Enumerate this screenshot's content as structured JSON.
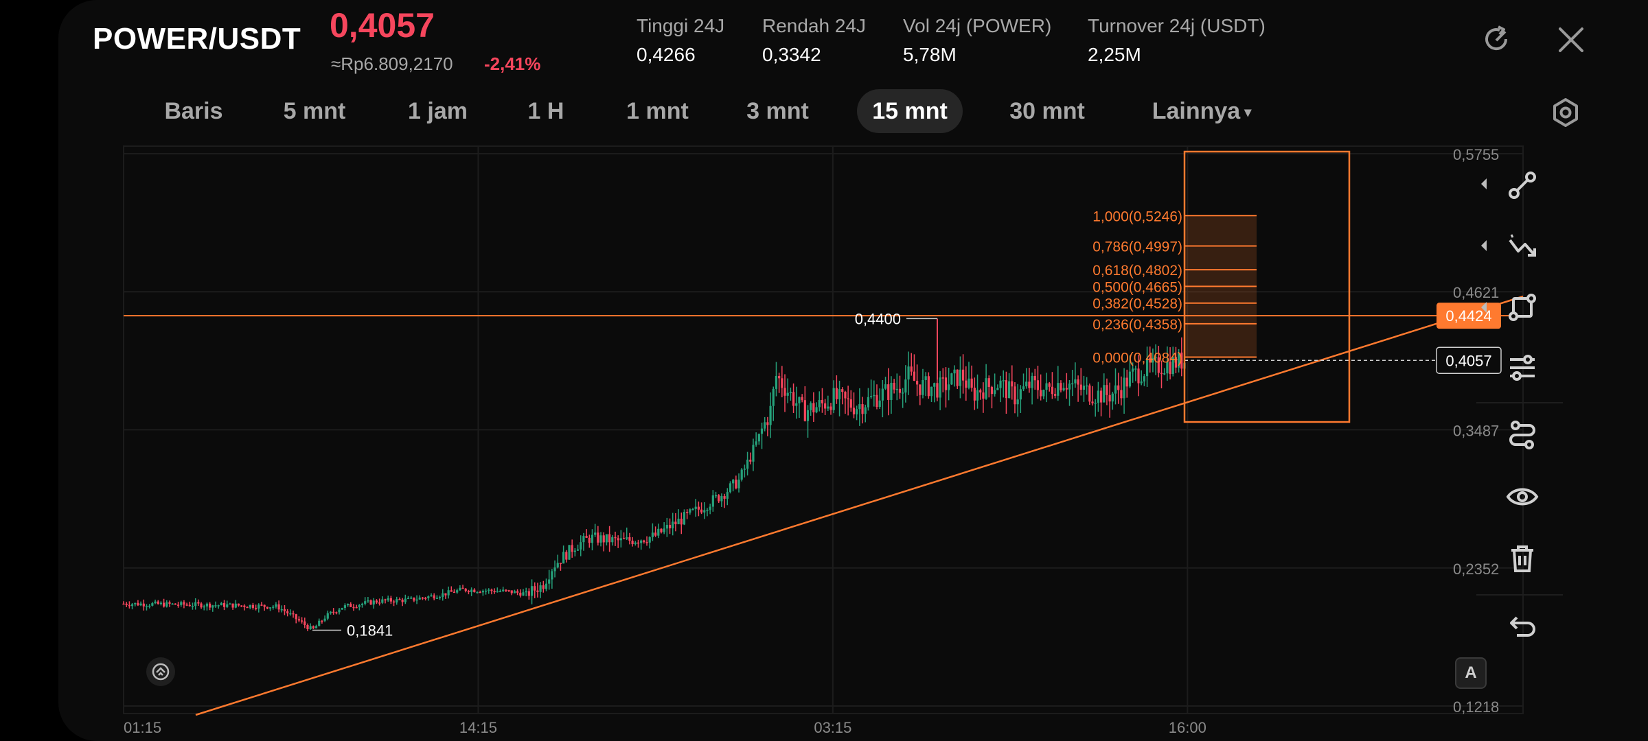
{
  "header": {
    "pair": "POWER/USDT",
    "last_price": "0,4057",
    "fiat_value": "≈Rp6.809,2170",
    "change_pct": "-2,41%",
    "stats": [
      {
        "label": "Tinggi 24J",
        "value": "0,4266"
      },
      {
        "label": "Rendah 24J",
        "value": "0,3342"
      },
      {
        "label": "Vol 24j (POWER)",
        "value": "5,78M"
      },
      {
        "label": "Turnover 24j (USDT)",
        "value": "2,25M"
      }
    ],
    "icons": {
      "rotate": "rotate-screen-icon",
      "close": "close-icon"
    }
  },
  "tabs": [
    "Baris",
    "5 mnt",
    "1 jam",
    "1 H",
    "1 mnt",
    "3 mnt",
    "15 mnt",
    "30 mnt",
    "Lainnya"
  ],
  "active_tab": "15 mnt",
  "settings_icon": "hexagon-settings-icon",
  "sidebar_icons": [
    "trend-line-tool-icon",
    "zigzag-tool-icon",
    "shape-tool-icon",
    "fibonacci-tool-icon",
    "pattern-tool-icon",
    "visibility-icon",
    "delete-icon",
    "undo-icon"
  ],
  "colors": {
    "up": "#26a17b",
    "down": "#f6465d",
    "drawing": "#ff7a2f",
    "background": "#0b0b0b"
  },
  "chart_data": {
    "type": "candlestick",
    "y_axis_labels": [
      "0,5755",
      "0,4621",
      "0,3487",
      "0,2352",
      "0,1218"
    ],
    "ylim": [
      0.1218,
      0.5755
    ],
    "x_axis_labels": [
      "01:15",
      "14:15",
      "03:15",
      "16:00"
    ],
    "price_path": [
      [
        0,
        0.2059
      ],
      [
        0.05,
        0.2052
      ],
      [
        0.09,
        0.2047
      ],
      [
        0.12,
        0.2042
      ],
      [
        0.145,
        0.2035
      ],
      [
        0.155,
        0.198
      ],
      [
        0.17,
        0.189
      ],
      [
        0.178,
        0.1841
      ],
      [
        0.19,
        0.195
      ],
      [
        0.205,
        0.203
      ],
      [
        0.24,
        0.208
      ],
      [
        0.27,
        0.209
      ],
      [
        0.3,
        0.2135
      ],
      [
        0.32,
        0.2175
      ],
      [
        0.36,
        0.216
      ],
      [
        0.38,
        0.214
      ],
      [
        0.395,
        0.221
      ],
      [
        0.405,
        0.237
      ],
      [
        0.415,
        0.245
      ],
      [
        0.425,
        0.253
      ],
      [
        0.44,
        0.26
      ],
      [
        0.47,
        0.257
      ],
      [
        0.5,
        0.261
      ],
      [
        0.52,
        0.272
      ],
      [
        0.545,
        0.285
      ],
      [
        0.565,
        0.296
      ],
      [
        0.58,
        0.307
      ],
      [
        0.59,
        0.325
      ],
      [
        0.6,
        0.345
      ],
      [
        0.61,
        0.365
      ],
      [
        0.615,
        0.393
      ],
      [
        0.625,
        0.382
      ],
      [
        0.64,
        0.364
      ],
      [
        0.655,
        0.368
      ],
      [
        0.67,
        0.375
      ],
      [
        0.69,
        0.368
      ],
      [
        0.71,
        0.376
      ],
      [
        0.73,
        0.384
      ],
      [
        0.74,
        0.393
      ],
      [
        0.75,
        0.385
      ],
      [
        0.77,
        0.383
      ],
      [
        0.79,
        0.394
      ],
      [
        0.8,
        0.378
      ],
      [
        0.81,
        0.383
      ],
      [
        0.825,
        0.387
      ],
      [
        0.84,
        0.376
      ],
      [
        0.855,
        0.386
      ],
      [
        0.87,
        0.381
      ],
      [
        0.885,
        0.389
      ],
      [
        0.9,
        0.383
      ],
      [
        0.915,
        0.378
      ],
      [
        0.93,
        0.3775
      ],
      [
        0.94,
        0.383
      ],
      [
        0.95,
        0.393
      ],
      [
        0.965,
        0.399
      ],
      [
        1,
        0.4057
      ]
    ],
    "extremes": {
      "high_label": "0,4400",
      "high": 0.44,
      "low_label": "0,1841",
      "low": 0.1841
    },
    "horizontal_line": {
      "value": 0.4424,
      "label": "0,4424"
    },
    "current_price": {
      "value": 0.4057,
      "label": "0,4057"
    },
    "fibonacci": [
      {
        "ratio": "1,000",
        "price": "0,5246",
        "value": 0.5246
      },
      {
        "ratio": "0,786",
        "price": "0,4997",
        "value": 0.4997
      },
      {
        "ratio": "0,618",
        "price": "0,4802",
        "value": 0.4802
      },
      {
        "ratio": "0,500",
        "price": "0,4665",
        "value": 0.4665
      },
      {
        "ratio": "0,382",
        "price": "0,4528",
        "value": 0.4528
      },
      {
        "ratio": "0,236",
        "price": "0,4358",
        "value": 0.4358
      },
      {
        "ratio": "0,000",
        "price": "0,4084",
        "value": 0.4084
      }
    ],
    "fib_label_format": "{ratio}({price})",
    "grid": true,
    "auto_scale_button": "A"
  }
}
